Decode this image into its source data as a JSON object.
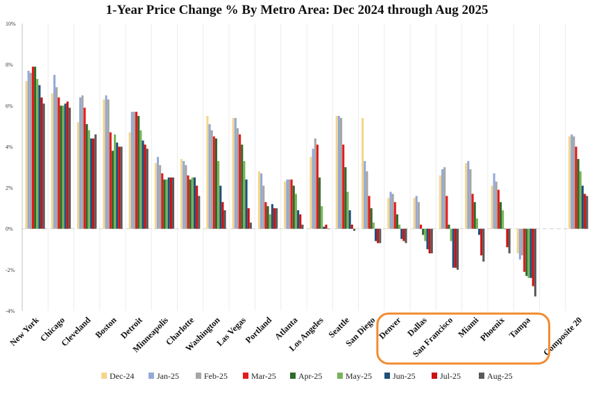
{
  "chart_data": {
    "type": "bar",
    "title": "1-Year Price Change % By Metro Area: Dec 2024 through Aug 2025",
    "xlabel": "",
    "ylabel": "",
    "ylim": [
      -4,
      10
    ],
    "yticks": [
      "-4%",
      "-2%",
      "0%",
      "2%",
      "4%",
      "6%",
      "8%",
      "10%"
    ],
    "legend_position": "bottom",
    "categories": [
      "New York",
      "Chicago",
      "Cleveland",
      "Boston",
      "Detroit",
      "Minneapolis",
      "Charlotte",
      "Washington",
      "Las Vegas",
      "Portland",
      "Atlanta",
      "Los Angeles",
      "Seattle",
      "San Diego",
      "Denver",
      "Dallas",
      "San Francisco",
      "Miami",
      "Phoenix",
      "Tampa",
      "",
      "Composite 20"
    ],
    "series": [
      {
        "name": "Dec-24",
        "color": "#f5d58a",
        "values": [
          7.2,
          6.6,
          5.2,
          6.3,
          4.7,
          3.2,
          3.4,
          5.5,
          5.4,
          2.8,
          2.3,
          3.5,
          5.5,
          5.4,
          1.5,
          1.5,
          2.6,
          3.2,
          2.1,
          -1.2,
          0,
          4.5
        ]
      },
      {
        "name": "Jan-25",
        "color": "#93a9d6",
        "values": [
          7.7,
          7.5,
          6.4,
          6.5,
          5.7,
          3.5,
          3.3,
          5.1,
          5.4,
          2.7,
          2.4,
          3.9,
          5.5,
          3.3,
          1.8,
          1.6,
          2.9,
          3.3,
          2.7,
          -1.5,
          0,
          4.6
        ]
      },
      {
        "name": "Feb-25",
        "color": "#a6a6a6",
        "values": [
          7.6,
          6.9,
          6.5,
          6.3,
          5.7,
          3.1,
          3.1,
          4.8,
          4.9,
          2.1,
          2.4,
          4.4,
          5.4,
          2.8,
          1.7,
          1.3,
          3.0,
          2.9,
          2.3,
          -1.3,
          0,
          4.5
        ]
      },
      {
        "name": "Mar-25",
        "color": "#e31b1b",
        "values": [
          7.9,
          6.4,
          5.9,
          4.7,
          5.7,
          2.7,
          2.6,
          4.5,
          4.6,
          1.3,
          2.4,
          4.1,
          4.1,
          1.6,
          1.3,
          0.2,
          1.6,
          1.7,
          1.9,
          -2.1,
          0,
          4.0
        ]
      },
      {
        "name": "Apr-25",
        "color": "#2e6a2a",
        "values": [
          7.9,
          6.0,
          5.1,
          3.8,
          5.5,
          2.4,
          2.4,
          4.4,
          4.1,
          1.1,
          2.1,
          2.5,
          3.0,
          1.0,
          0.7,
          -0.3,
          0.2,
          1.3,
          1.3,
          -2.3,
          0,
          3.4
        ]
      },
      {
        "name": "May-25",
        "color": "#78b35a",
        "values": [
          7.3,
          6.0,
          4.8,
          4.6,
          4.8,
          2.4,
          2.5,
          3.3,
          3.3,
          0.7,
          1.7,
          1.1,
          1.8,
          0.3,
          0.2,
          -0.6,
          -0.6,
          0.5,
          0.9,
          -2.4,
          0,
          2.8
        ]
      },
      {
        "name": "Jun-25",
        "color": "#1f4f7a",
        "values": [
          7.0,
          6.1,
          4.4,
          4.2,
          4.3,
          2.5,
          2.5,
          2.1,
          2.4,
          1.2,
          0.9,
          0.1,
          0.9,
          -0.6,
          -0.5,
          -1.0,
          -1.9,
          -0.3,
          0.0,
          -2.4,
          0,
          2.1
        ]
      },
      {
        "name": "Jul-25",
        "color": "#cc1111",
        "values": [
          6.4,
          6.2,
          4.4,
          4.0,
          4.1,
          2.5,
          2.1,
          1.3,
          1.0,
          1.0,
          0.7,
          0.2,
          0.2,
          -0.7,
          -0.6,
          -1.2,
          -1.9,
          -1.3,
          -0.9,
          -2.8,
          0,
          1.7
        ]
      },
      {
        "name": "Aug-25",
        "color": "#595959",
        "values": [
          6.1,
          5.9,
          4.6,
          4.0,
          3.9,
          2.5,
          1.6,
          0.9,
          0.3,
          1.0,
          0.2,
          0.0,
          -0.1,
          -0.7,
          -0.7,
          -1.2,
          -2.0,
          -1.6,
          -1.2,
          -3.3,
          0,
          1.6
        ]
      }
    ],
    "annotation": {
      "type": "highlight-box",
      "categories": [
        "Denver",
        "Dallas",
        "San Francisco",
        "Miami",
        "Phoenix",
        "Tampa"
      ],
      "color": "#f28a2e"
    }
  }
}
